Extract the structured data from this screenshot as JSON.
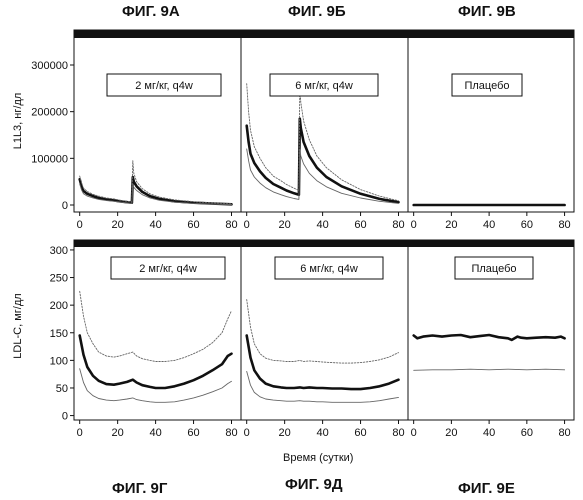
{
  "figure_titles": {
    "a": "ФИГ. 9А",
    "b": "ФИГ. 9Б",
    "c": "ФИГ. 9В",
    "d": "ФИГ. 9Г",
    "e": "ФИГ. 9Д",
    "f": "ФИГ. 9Е"
  },
  "chart_data": [
    {
      "type": "line",
      "row": "top",
      "ylabel": "L1L3, нг/дл",
      "xlabel": "",
      "xlim": [
        -3,
        85
      ],
      "ylim": [
        -15000,
        375000
      ],
      "yticks": [
        0,
        100000,
        200000,
        300000
      ],
      "ytick_labels": [
        "0",
        "100000",
        "200000",
        "300000"
      ],
      "xticks": [
        0,
        20,
        40,
        60,
        80
      ],
      "xtick_labels": [
        "0",
        "20",
        "40",
        "60",
        "80"
      ],
      "panels": [
        {
          "label": "2 мг/кг, q4w",
          "series": [
            {
              "role": "mean",
              "x": [
                0,
                1,
                2,
                4,
                7,
                10,
                14,
                18,
                21,
                25,
                27.5,
                28,
                28.5,
                30,
                33,
                37,
                42,
                50,
                60,
                70,
                80
              ],
              "y": [
                55000,
                40000,
                30000,
                24000,
                19000,
                15000,
                12000,
                10000,
                8000,
                6000,
                5000,
                60000,
                50000,
                40000,
                28000,
                19000,
                13000,
                8000,
                5000,
                3000,
                1500
              ]
            },
            {
              "role": "upper",
              "x": [
                0,
                1,
                2,
                4,
                7,
                10,
                14,
                18,
                21,
                25,
                27.5,
                28,
                28.5,
                30,
                33,
                37,
                42,
                50,
                60,
                70,
                80
              ],
              "y": [
                62000,
                47000,
                36000,
                29000,
                23000,
                19000,
                15000,
                13000,
                10500,
                8000,
                6500,
                95000,
                68000,
                50000,
                35000,
                24000,
                17000,
                11000,
                7000,
                4500,
                2500
              ]
            },
            {
              "role": "lower",
              "x": [
                0,
                1,
                2,
                4,
                7,
                10,
                14,
                18,
                21,
                25,
                27.5,
                28,
                28.5,
                30,
                33,
                37,
                42,
                50,
                60,
                70,
                80
              ],
              "y": [
                45000,
                32000,
                24000,
                19000,
                15000,
                12000,
                9500,
                8000,
                6500,
                4500,
                3500,
                45000,
                38000,
                31000,
                22000,
                15000,
                10000,
                6000,
                3500,
                2000,
                1000
              ]
            }
          ]
        },
        {
          "label": "6 мг/кг, q4w",
          "series": [
            {
              "role": "mean",
              "x": [
                0,
                1,
                2,
                4,
                7,
                10,
                14,
                18,
                21,
                25,
                27.5,
                28,
                28.5,
                30,
                33,
                37,
                42,
                50,
                60,
                70,
                80
              ],
              "y": [
                170000,
                135000,
                110000,
                90000,
                72000,
                58000,
                45000,
                37000,
                31000,
                25000,
                22000,
                185000,
                165000,
                135000,
                105000,
                80000,
                60000,
                40000,
                24000,
                13000,
                6000
              ]
            },
            {
              "role": "upper",
              "x": [
                0,
                1,
                2,
                4,
                7,
                10,
                14,
                18,
                21,
                25,
                27.5,
                28,
                28.5,
                30,
                33,
                37,
                42,
                50,
                60,
                70,
                80
              ],
              "y": [
                260000,
                200000,
                160000,
                125000,
                100000,
                80000,
                62000,
                52000,
                44000,
                36000,
                31000,
                250000,
                220000,
                180000,
                140000,
                105000,
                80000,
                54000,
                33000,
                19000,
                9000
              ]
            },
            {
              "role": "lower",
              "x": [
                0,
                1,
                2,
                4,
                7,
                10,
                14,
                18,
                21,
                25,
                27.5,
                28,
                28.5,
                30,
                33,
                37,
                42,
                50,
                60,
                70,
                80
              ],
              "y": [
                120000,
                95000,
                75000,
                60000,
                47000,
                37000,
                28000,
                22000,
                18000,
                14000,
                12000,
                120000,
                105000,
                88000,
                68000,
                52000,
                39000,
                25000,
                15000,
                8000,
                3500
              ]
            }
          ]
        },
        {
          "label": "Плацебо",
          "series": [
            {
              "role": "mean",
              "x": [
                0,
                20,
                40,
                60,
                80
              ],
              "y": [
                0,
                0,
                0,
                0,
                0
              ]
            }
          ]
        }
      ]
    },
    {
      "type": "line",
      "row": "bottom",
      "ylabel": "LDL-C, мг/дл",
      "xlabel": "Время (сутки)",
      "xlim": [
        -3,
        85
      ],
      "ylim": [
        -8,
        318
      ],
      "yticks": [
        0,
        50,
        100,
        150,
        200,
        250,
        300
      ],
      "ytick_labels": [
        "0",
        "50",
        "100",
        "150",
        "200",
        "250",
        "300"
      ],
      "xticks": [
        0,
        20,
        40,
        60,
        80
      ],
      "xtick_labels": [
        "0",
        "20",
        "40",
        "60",
        "80"
      ],
      "panels": [
        {
          "label": "2 мг/кг, q4w",
          "series": [
            {
              "role": "mean",
              "x": [
                0,
                2,
                4,
                7,
                10,
                14,
                18,
                21,
                25,
                28,
                30,
                33,
                37,
                40,
                45,
                50,
                55,
                60,
                65,
                70,
                75,
                78,
                80
              ],
              "y": [
                145,
                110,
                88,
                72,
                63,
                57,
                56,
                58,
                61,
                65,
                60,
                55,
                52,
                50,
                50,
                53,
                58,
                64,
                72,
                82,
                93,
                108,
                112
              ]
            },
            {
              "role": "upper",
              "x": [
                0,
                2,
                4,
                7,
                10,
                14,
                18,
                21,
                25,
                28,
                30,
                33,
                37,
                40,
                45,
                50,
                55,
                60,
                65,
                70,
                75,
                78,
                80
              ],
              "y": [
                225,
                180,
                150,
                130,
                115,
                108,
                106,
                108,
                112,
                115,
                108,
                103,
                100,
                98,
                98,
                100,
                105,
                112,
                120,
                132,
                150,
                175,
                190
              ]
            },
            {
              "role": "lower",
              "x": [
                0,
                2,
                4,
                7,
                10,
                14,
                18,
                21,
                25,
                28,
                30,
                33,
                37,
                40,
                45,
                50,
                55,
                60,
                65,
                70,
                75,
                78,
                80
              ],
              "y": [
                85,
                60,
                45,
                36,
                31,
                28,
                27,
                28,
                30,
                32,
                29,
                27,
                25,
                24,
                24,
                25,
                28,
                32,
                37,
                43,
                50,
                58,
                62
              ]
            }
          ]
        },
        {
          "label": "6 мг/кг, q4w",
          "series": [
            {
              "role": "mean",
              "x": [
                0,
                2,
                4,
                7,
                10,
                14,
                18,
                21,
                25,
                28,
                30,
                33,
                37,
                40,
                45,
                50,
                55,
                60,
                65,
                70,
                75,
                80
              ],
              "y": [
                145,
                105,
                82,
                67,
                58,
                53,
                51,
                50,
                50,
                51,
                50,
                51,
                50,
                50,
                49,
                49,
                48,
                48,
                50,
                53,
                58,
                65
              ]
            },
            {
              "role": "upper",
              "x": [
                0,
                2,
                4,
                7,
                10,
                14,
                18,
                21,
                25,
                28,
                30,
                33,
                37,
                40,
                45,
                50,
                55,
                60,
                65,
                70,
                75,
                80
              ],
              "y": [
                210,
                160,
                130,
                112,
                104,
                100,
                99,
                98,
                98,
                100,
                98,
                99,
                98,
                97,
                96,
                95,
                95,
                96,
                98,
                101,
                106,
                114
              ]
            },
            {
              "role": "lower",
              "x": [
                0,
                2,
                4,
                7,
                10,
                14,
                18,
                21,
                25,
                28,
                30,
                33,
                37,
                40,
                45,
                50,
                55,
                60,
                65,
                70,
                75,
                80
              ],
              "y": [
                80,
                55,
                42,
                34,
                30,
                28,
                27,
                26,
                26,
                27,
                26,
                26,
                25,
                25,
                24,
                24,
                24,
                24,
                25,
                27,
                30,
                33
              ]
            }
          ]
        },
        {
          "label": "Плацебо",
          "series": [
            {
              "role": "mean",
              "x": [
                0,
                2,
                5,
                10,
                15,
                20,
                25,
                30,
                35,
                40,
                45,
                50,
                52,
                55,
                57,
                60,
                65,
                70,
                75,
                78,
                80
              ],
              "y": [
                145,
                140,
                143,
                145,
                143,
                145,
                146,
                142,
                144,
                146,
                142,
                140,
                137,
                143,
                141,
                140,
                141,
                142,
                141,
                143,
                140
              ]
            },
            {
              "role": "lower",
              "x": [
                0,
                10,
                20,
                30,
                40,
                50,
                60,
                70,
                80
              ],
              "y": [
                82,
                83,
                83,
                84,
                83,
                84,
                83,
                84,
                83
              ]
            }
          ]
        }
      ]
    }
  ]
}
